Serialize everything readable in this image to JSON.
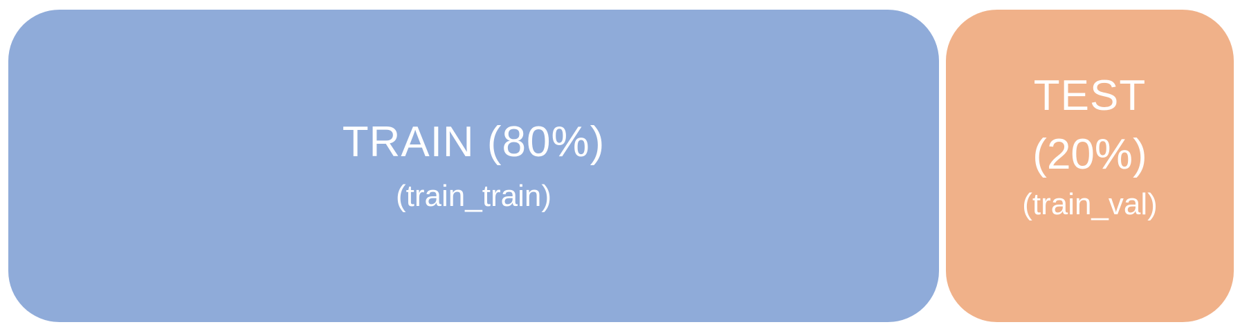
{
  "diagram": {
    "train_block": {
      "title": "TRAIN (80%)",
      "subtitle": "(train_train)",
      "color": "#8fabd9"
    },
    "test_block": {
      "title": "TEST",
      "percent": "(20%)",
      "subtitle": "(train_val)",
      "color": "#f0b189"
    }
  }
}
